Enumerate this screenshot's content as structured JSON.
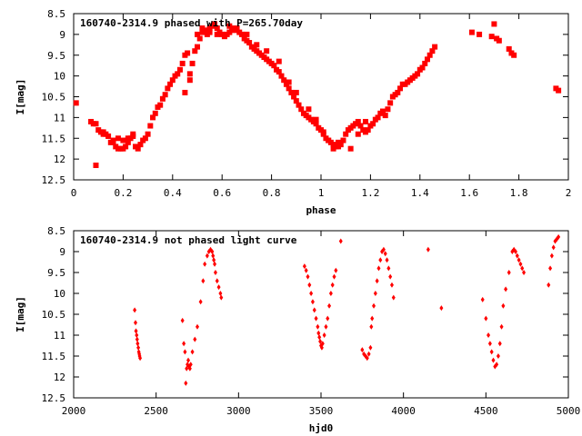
{
  "chart_data": [
    {
      "type": "scatter",
      "title": "160740-2314.9 phased with P=265.70day",
      "xlabel": "phase",
      "ylabel": "I[mag]",
      "xlim": [
        0,
        2
      ],
      "ylim": [
        12.5,
        8.5
      ],
      "y_inverted": true,
      "x_ticks": [
        "0",
        "0.2",
        "0.4",
        "0.6",
        "0.8",
        "1",
        "1.2",
        "1.4",
        "1.6",
        "1.8",
        "2"
      ],
      "y_ticks": [
        "8.5",
        "9",
        "9.5",
        "10",
        "10.5",
        "11",
        "11.5",
        "12",
        "12.5"
      ],
      "marker": "filled-square",
      "color": "#ff0000",
      "grid": false,
      "series": [
        {
          "x": [
            0.01,
            0.07,
            0.08,
            0.09,
            0.1,
            0.11,
            0.12,
            0.13,
            0.14,
            0.15,
            0.16,
            0.17,
            0.18,
            0.19,
            0.2,
            0.21,
            0.22,
            0.23,
            0.24,
            0.25,
            0.26,
            0.27,
            0.28,
            0.29,
            0.3,
            0.31,
            0.32,
            0.33,
            0.34,
            0.35,
            0.36,
            0.37,
            0.38,
            0.39,
            0.4,
            0.41,
            0.42,
            0.43,
            0.44,
            0.45,
            0.46,
            0.47,
            0.48,
            0.49,
            0.5,
            0.51,
            0.52,
            0.53,
            0.54,
            0.55,
            0.56,
            0.57,
            0.58,
            0.59,
            0.6,
            0.61,
            0.62,
            0.63,
            0.64,
            0.65,
            0.66,
            0.67,
            0.68,
            0.69,
            0.7,
            0.71,
            0.72,
            0.73,
            0.74,
            0.75,
            0.76,
            0.77,
            0.78,
            0.79,
            0.8,
            0.81,
            0.82,
            0.83,
            0.84,
            0.85,
            0.86,
            0.87,
            0.88,
            0.89,
            0.9,
            0.91,
            0.92,
            0.93,
            0.94,
            0.95,
            0.96,
            0.97,
            0.98,
            0.99,
            1.0,
            1.01,
            1.02,
            1.03,
            1.04,
            1.05,
            1.06,
            1.07,
            1.08,
            1.09,
            1.1,
            1.11,
            1.12,
            1.13,
            1.14,
            1.15,
            1.16,
            1.17,
            1.18,
            1.19,
            1.2,
            1.21,
            1.22,
            1.23,
            1.24,
            1.25,
            1.26,
            1.27,
            1.28,
            1.29,
            1.3,
            1.31,
            1.32,
            1.33,
            1.34,
            1.35,
            1.36,
            1.37,
            1.38,
            1.39,
            1.4,
            1.41,
            1.42,
            1.43,
            1.44,
            1.45,
            1.46,
            1.61,
            1.64,
            1.69,
            1.7,
            1.71,
            1.72,
            1.76,
            1.77,
            1.78,
            1.95,
            1.96,
            0.09,
            0.12,
            0.16,
            0.18,
            0.2,
            0.22,
            0.24,
            0.45,
            0.47,
            0.5,
            0.52,
            0.55,
            0.58,
            0.63,
            0.66,
            0.7,
            0.74,
            0.78,
            0.83,
            0.87,
            0.9,
            0.95,
            0.98,
            1.01,
            1.03,
            1.05,
            1.07,
            1.12,
            1.15,
            1.18
          ],
          "y": [
            10.65,
            11.1,
            11.15,
            12.15,
            11.3,
            11.35,
            11.4,
            11.4,
            11.45,
            11.6,
            11.55,
            11.7,
            11.75,
            11.75,
            11.75,
            11.7,
            11.6,
            11.5,
            11.45,
            11.7,
            11.75,
            11.65,
            11.55,
            11.5,
            11.4,
            11.2,
            11.0,
            10.9,
            10.75,
            10.7,
            10.55,
            10.45,
            10.3,
            10.2,
            10.1,
            10.0,
            9.95,
            9.85,
            9.7,
            9.5,
            9.45,
            10.1,
            9.7,
            9.4,
            9.3,
            9.1,
            8.95,
            8.9,
            9.0,
            8.85,
            8.8,
            8.75,
            8.85,
            8.95,
            9.0,
            9.05,
            9.0,
            8.95,
            8.9,
            8.85,
            8.9,
            8.95,
            9.0,
            9.1,
            9.15,
            9.2,
            9.3,
            9.35,
            9.4,
            9.45,
            9.5,
            9.55,
            9.6,
            9.65,
            9.7,
            9.75,
            9.85,
            9.9,
            10.0,
            10.1,
            10.2,
            10.3,
            10.4,
            10.5,
            10.6,
            10.7,
            10.8,
            10.9,
            10.95,
            11.0,
            11.05,
            11.1,
            11.15,
            11.25,
            11.3,
            11.4,
            11.5,
            11.55,
            11.6,
            11.65,
            11.7,
            11.7,
            11.65,
            11.55,
            11.4,
            11.3,
            11.25,
            11.2,
            11.15,
            11.1,
            11.2,
            11.3,
            11.35,
            11.3,
            11.2,
            11.15,
            11.05,
            11.0,
            10.9,
            10.85,
            10.95,
            10.8,
            10.65,
            10.5,
            10.45,
            10.4,
            10.3,
            10.2,
            10.2,
            10.15,
            10.1,
            10.05,
            10.0,
            9.95,
            9.85,
            9.8,
            9.7,
            9.6,
            9.5,
            9.4,
            9.3,
            8.95,
            9.0,
            9.05,
            8.75,
            9.1,
            9.15,
            9.35,
            9.45,
            9.5,
            10.3,
            10.35,
            11.15,
            11.35,
            11.6,
            11.5,
            11.55,
            11.5,
            11.4,
            10.4,
            9.95,
            9.0,
            8.85,
            8.95,
            9.0,
            8.8,
            8.85,
            9.0,
            9.25,
            9.4,
            9.65,
            10.15,
            10.4,
            10.8,
            11.05,
            11.35,
            11.55,
            11.75,
            11.6,
            11.75,
            11.4,
            11.1
          ]
        }
      ]
    },
    {
      "type": "scatter",
      "title": "160740-2314.9 not phased light curve",
      "xlabel": "hjd0",
      "ylabel": "I[mag]",
      "xlim": [
        2000,
        5000
      ],
      "ylim": [
        12.5,
        8.5
      ],
      "y_inverted": true,
      "x_ticks": [
        "2000",
        "2500",
        "3000",
        "3500",
        "4000",
        "4500",
        "5000"
      ],
      "y_ticks": [
        "8.5",
        "9",
        "9.5",
        "10",
        "10.5",
        "11",
        "11.5",
        "12",
        "12.5"
      ],
      "marker": "small-diamond",
      "color": "#ff0000",
      "grid": false,
      "series": [
        {
          "x": [
            2370,
            2375,
            2378,
            2382,
            2385,
            2388,
            2392,
            2395,
            2398,
            2400,
            2403,
            2660,
            2668,
            2675,
            2680,
            2685,
            2690,
            2695,
            2700,
            2705,
            2710,
            2720,
            2735,
            2750,
            2770,
            2785,
            2795,
            2810,
            2820,
            2830,
            2840,
            2845,
            2850,
            2855,
            2860,
            2870,
            2880,
            2890,
            2895,
            3400,
            3410,
            3420,
            3430,
            3440,
            3450,
            3460,
            3470,
            3480,
            3485,
            3490,
            3495,
            3500,
            3505,
            3510,
            3520,
            3530,
            3540,
            3550,
            3560,
            3570,
            3580,
            3590,
            3620,
            3750,
            3760,
            3770,
            3780,
            3790,
            3800,
            3805,
            3810,
            3820,
            3830,
            3840,
            3850,
            3860,
            3870,
            3880,
            3890,
            3900,
            3910,
            3920,
            3930,
            3940,
            4150,
            4230,
            4480,
            4500,
            4515,
            4525,
            4535,
            4545,
            4555,
            4565,
            4575,
            4585,
            4595,
            4605,
            4620,
            4640,
            4660,
            4670,
            4680,
            4690,
            4700,
            4710,
            4720,
            4730,
            4880,
            4890,
            4900,
            4910,
            4920,
            4930,
            4940
          ],
          "y": [
            10.4,
            10.7,
            10.9,
            11.0,
            11.1,
            11.2,
            11.3,
            11.4,
            11.45,
            11.5,
            11.55,
            10.65,
            11.2,
            11.4,
            12.15,
            11.8,
            11.7,
            11.6,
            11.75,
            11.8,
            11.7,
            11.4,
            11.1,
            10.8,
            10.2,
            9.7,
            9.3,
            9.1,
            9.0,
            8.95,
            9.0,
            9.1,
            9.2,
            9.3,
            9.5,
            9.7,
            9.85,
            10.0,
            10.1,
            9.35,
            9.45,
            9.6,
            9.8,
            10.0,
            10.2,
            10.4,
            10.6,
            10.8,
            10.95,
            11.05,
            11.15,
            11.25,
            11.3,
            11.2,
            11.0,
            10.8,
            10.6,
            10.3,
            10.0,
            9.8,
            9.6,
            9.45,
            8.75,
            11.35,
            11.45,
            11.5,
            11.55,
            11.45,
            11.3,
            10.8,
            10.6,
            10.3,
            10.0,
            9.7,
            9.4,
            9.2,
            9.0,
            8.95,
            9.05,
            9.2,
            9.4,
            9.6,
            9.8,
            10.1,
            8.95,
            10.35,
            10.15,
            10.6,
            11.0,
            11.2,
            11.4,
            11.6,
            11.75,
            11.7,
            11.5,
            11.2,
            10.8,
            10.3,
            9.9,
            9.5,
            9.0,
            8.95,
            9.0,
            9.1,
            9.2,
            9.3,
            9.4,
            9.5,
            9.8,
            9.4,
            9.1,
            8.9,
            8.75,
            8.7,
            8.65
          ]
        }
      ]
    }
  ]
}
